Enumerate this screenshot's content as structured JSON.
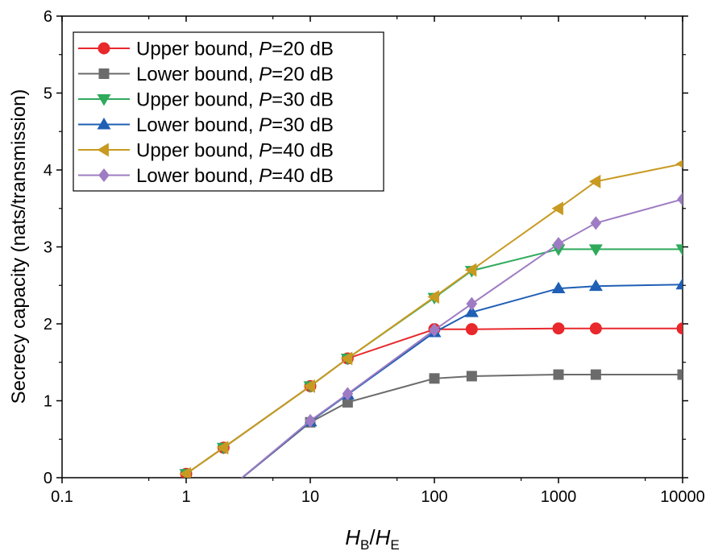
{
  "chart_data": {
    "type": "line",
    "x_scale": "log",
    "xlim": [
      0.1,
      10000
    ],
    "ylim": [
      0,
      6
    ],
    "xticks": [
      0.1,
      1,
      10,
      100,
      1000,
      10000
    ],
    "xtick_labels": [
      "0.1",
      "1",
      "10",
      "100",
      "1000",
      "10000"
    ],
    "yticks": [
      0,
      1,
      2,
      3,
      4,
      5,
      6
    ],
    "ytick_labels": [
      "0",
      "1",
      "2",
      "3",
      "4",
      "5",
      "6"
    ],
    "ylabel": "Secrecy capacity (nats/transmission)",
    "xlabel": {
      "h1": "H",
      "s1": "B",
      "slash": "/",
      "h2": "H",
      "s2": "E"
    },
    "grid": false,
    "legend_position": "top-left",
    "series": [
      {
        "name_prefix": "Upper bound, ",
        "name_var": "P",
        "name_suffix": "=20 dB",
        "color": "#e8282b",
        "marker": "circle",
        "x": [
          1,
          2,
          10,
          20,
          100,
          200,
          1000,
          2000,
          10000
        ],
        "y": [
          0.05,
          0.39,
          1.19,
          1.55,
          1.93,
          1.93,
          1.94,
          1.94,
          1.94
        ]
      },
      {
        "name_prefix": "Lower bound, ",
        "name_var": "P",
        "name_suffix": "=20 dB",
        "color": "#6b6b6b",
        "marker": "square",
        "x": [
          2,
          10,
          20,
          100,
          200,
          1000,
          2000,
          10000
        ],
        "y": [
          -0.2,
          0.72,
          0.98,
          1.29,
          1.32,
          1.34,
          1.34,
          1.34
        ]
      },
      {
        "name_prefix": "Upper bound, ",
        "name_var": "P",
        "name_suffix": "=30 dB",
        "color": "#2eaa5b",
        "marker": "triangle-down",
        "x": [
          1,
          2,
          10,
          20,
          100,
          200,
          1000,
          2000,
          10000
        ],
        "y": [
          0.05,
          0.39,
          1.19,
          1.55,
          2.34,
          2.69,
          2.97,
          2.97,
          2.97
        ]
      },
      {
        "name_prefix": "Lower bound, ",
        "name_var": "P",
        "name_suffix": "=30 dB",
        "color": "#1f5fb5",
        "marker": "triangle-up",
        "x": [
          2,
          10,
          20,
          100,
          200,
          1000,
          2000,
          10000
        ],
        "y": [
          -0.2,
          0.73,
          1.08,
          1.89,
          2.15,
          2.46,
          2.49,
          2.51
        ]
      },
      {
        "name_prefix": "Upper bound, ",
        "name_var": "P",
        "name_suffix": "=40 dB",
        "color": "#c89a22",
        "marker": "triangle-left",
        "x": [
          1,
          2,
          10,
          20,
          100,
          200,
          1000,
          2000,
          10000
        ],
        "y": [
          0.05,
          0.39,
          1.19,
          1.55,
          2.35,
          2.7,
          3.5,
          3.85,
          4.08
        ]
      },
      {
        "name_prefix": "Lower bound, ",
        "name_var": "P",
        "name_suffix": "=40 dB",
        "color": "#9e7cc3",
        "marker": "diamond",
        "x": [
          2,
          10,
          20,
          100,
          200,
          1000,
          2000,
          10000
        ],
        "y": [
          -0.2,
          0.74,
          1.09,
          1.92,
          2.26,
          3.04,
          3.31,
          3.62
        ]
      }
    ]
  }
}
